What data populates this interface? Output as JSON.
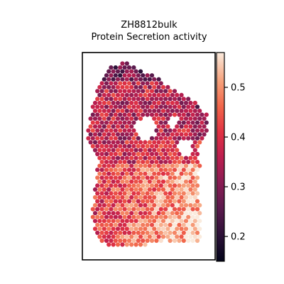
{
  "chart_data": {
    "type": "heatmap",
    "title": "ZH8812bulk",
    "subtitle": "Protein Secretion activity",
    "xlabel": "",
    "ylabel": "",
    "colorbar": {
      "colormap": "rocket",
      "range": [
        0.15,
        0.57
      ],
      "ticks": [
        0.2,
        0.3,
        0.4,
        0.5
      ],
      "tick_labels": [
        "0.2",
        "0.3",
        "0.4",
        "0.5"
      ]
    },
    "regions": [
      {
        "name": "top tissue",
        "mean_value": 0.35
      },
      {
        "name": "bottom-left tissue",
        "mean_value": 0.42
      },
      {
        "name": "bottom-right tissue",
        "mean_value": 0.49
      },
      {
        "name": "top-right edge",
        "mean_value": 0.3
      }
    ],
    "grid": false,
    "legend": "colorbar-right"
  }
}
